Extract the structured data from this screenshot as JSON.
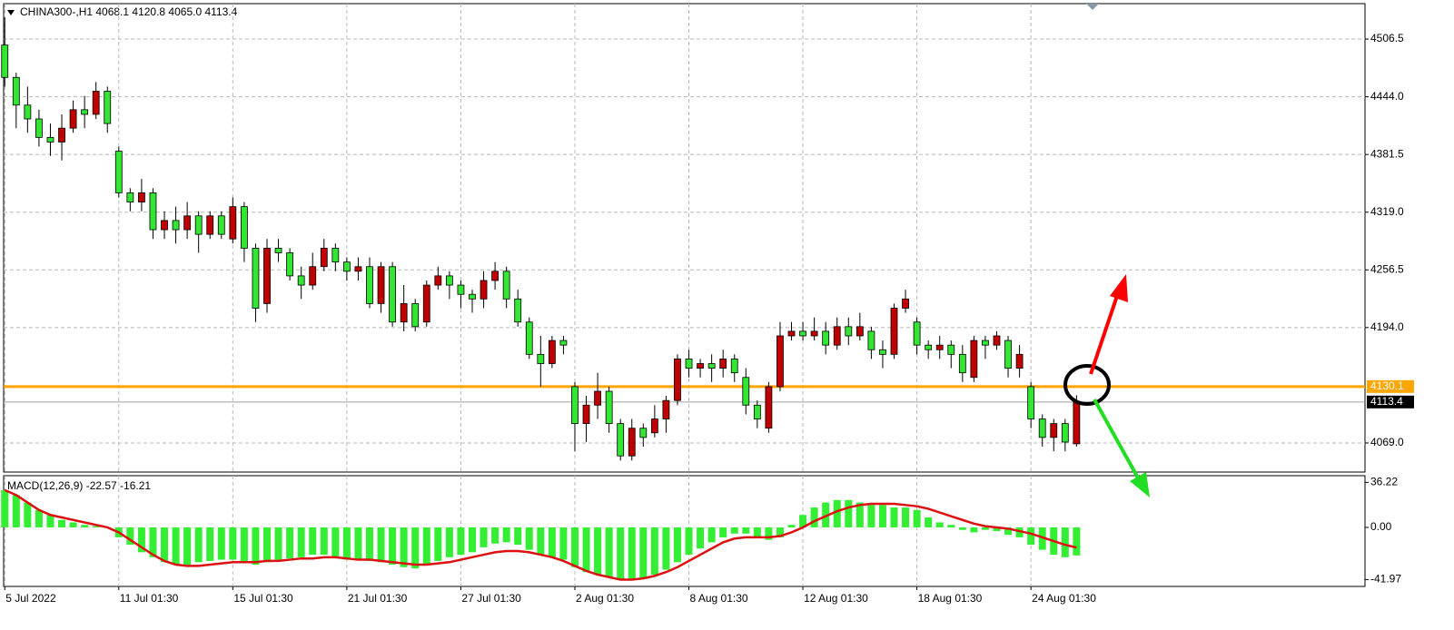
{
  "chart_data": [
    {
      "type": "candlestick",
      "title": "CHINA300-,H1  4068.1 4120.8 4065.0 4113.4",
      "xlim": [
        -0.1,
        119.3
      ],
      "ylim": [
        4037.5,
        4544.9
      ],
      "yticks": [
        4506.5,
        {
          "value": 4444.0,
          "label": "4444.0"
        },
        4381.5,
        {
          "value": 4319.0,
          "label": "4319.0"
        },
        4256.5,
        {
          "value": 4194.0,
          "label": "4194.0"
        },
        {
          "value": 4069.0,
          "label": "4069.0"
        }
      ],
      "grid": true,
      "up_color": "#c00000",
      "down_color": "#33e633",
      "open": [
        4500,
        4465,
        4435,
        4420,
        4400,
        4395,
        4410,
        4430,
        4425,
        4450,
        4385,
        4340,
        4330,
        4340,
        4300,
        4310,
        4300,
        4315,
        4295,
        4315,
        4290,
        4325,
        4280,
        4220,
        4280,
        4275,
        4250,
        4240,
        4260,
        4280,
        4265,
        4255,
        4260,
        4220,
        4260,
        4200,
        4220,
        4200,
        4240,
        4250,
        4240,
        4230,
        4225,
        4245,
        4255,
        4225,
        4200,
        4165,
        4155,
        4180,
        4130,
        4090,
        4110,
        4125,
        4090,
        4055,
        4085,
        4080,
        4095,
        4115,
        4160,
        4150,
        4155,
        4150,
        4160,
        4140,
        4110,
        4085,
        4130,
        4185,
        4190,
        4185,
        4190,
        4175,
        4195,
        4185,
        4190,
        4170,
        4165,
        4215,
        4200,
        4175,
        4170,
        4175,
        4165,
        4140,
        4180,
        4175,
        4180,
        4150,
        4130,
        4095,
        4075,
        4090,
        4068.1
      ],
      "high": [
        4530,
        4470,
        4455,
        4430,
        4415,
        4425,
        4440,
        4445,
        4460,
        4455,
        4390,
        4345,
        4355,
        4345,
        4320,
        4325,
        4330,
        4320,
        4320,
        4320,
        4335,
        4330,
        4285,
        4290,
        4290,
        4280,
        4260,
        4275,
        4290,
        4285,
        4270,
        4270,
        4270,
        4265,
        4265,
        4240,
        4225,
        4245,
        4260,
        4255,
        4245,
        4235,
        4255,
        4265,
        4260,
        4235,
        4205,
        4185,
        4185,
        4185,
        4135,
        4120,
        4145,
        4130,
        4095,
        4095,
        4090,
        4110,
        4120,
        4165,
        4170,
        4160,
        4165,
        4170,
        4165,
        4150,
        4115,
        4135,
        4200,
        4200,
        4200,
        4205,
        4200,
        4205,
        4205,
        4210,
        4195,
        4180,
        4220,
        4235,
        4205,
        4180,
        4185,
        4180,
        4175,
        4185,
        4185,
        4190,
        4185,
        4175,
        4135,
        4100,
        4095,
        4095,
        4120.8
      ],
      "low": [
        4455,
        4410,
        4405,
        4390,
        4380,
        4375,
        4405,
        4410,
        4420,
        4405,
        4335,
        4320,
        4320,
        4290,
        4290,
        4285,
        4290,
        4275,
        4290,
        4290,
        4285,
        4265,
        4200,
        4210,
        4265,
        4245,
        4225,
        4235,
        4255,
        4255,
        4245,
        4245,
        4215,
        4210,
        4195,
        4190,
        4190,
        4195,
        4235,
        4225,
        4215,
        4210,
        4215,
        4235,
        4215,
        4195,
        4160,
        4130,
        4150,
        4165,
        4060,
        4070,
        4095,
        4080,
        4050,
        4050,
        4065,
        4075,
        4080,
        4110,
        4140,
        4140,
        4135,
        4140,
        4135,
        4100,
        4085,
        4080,
        4125,
        4180,
        4180,
        4180,
        4165,
        4170,
        4175,
        4180,
        4160,
        4150,
        4160,
        4210,
        4165,
        4160,
        4160,
        4150,
        4135,
        4135,
        4160,
        4170,
        4140,
        4140,
        4085,
        4065,
        4060,
        4060,
        4065.0
      ],
      "close": [
        4465,
        4435,
        4420,
        4400,
        4395,
        4410,
        4430,
        4425,
        4450,
        4415,
        4340,
        4330,
        4340,
        4300,
        4310,
        4300,
        4315,
        4295,
        4315,
        4295,
        4325,
        4280,
        4215,
        4280,
        4275,
        4250,
        4240,
        4260,
        4280,
        4265,
        4255,
        4260,
        4220,
        4260,
        4200,
        4220,
        4195,
        4240,
        4250,
        4240,
        4230,
        4225,
        4245,
        4255,
        4225,
        4200,
        4165,
        4155,
        4180,
        4175,
        4090,
        4110,
        4125,
        4090,
        4055,
        4085,
        4075,
        4095,
        4115,
        4160,
        4150,
        4155,
        4150,
        4160,
        4145,
        4110,
        4095,
        4130,
        4185,
        4190,
        4185,
        4190,
        4175,
        4195,
        4185,
        4195,
        4170,
        4165,
        4215,
        4225,
        4175,
        4170,
        4175,
        4165,
        4145,
        4180,
        4175,
        4185,
        4150,
        4165,
        4095,
        4075,
        4090,
        4070,
        4113.4
      ],
      "hlines": [
        {
          "value": 4130.1,
          "color": "#ffa500"
        }
      ],
      "last_price": 4113.4
    },
    {
      "type": "macd",
      "title": "MACD(12,26,9) -22.57 -16.21",
      "xlim": [
        -0.1,
        119.3
      ],
      "ylim": [
        -47.5,
        41.6
      ],
      "yticks": [
        36.22,
        {
          "value": 0,
          "label": "0.00"
        },
        -41.97
      ],
      "xticks": [
        {
          "value": 0,
          "label": "5 Jul 2022"
        },
        {
          "value": 10,
          "label": "11 Jul 01:30"
        },
        {
          "value": 20,
          "label": "15 Jul 01:30"
        },
        {
          "value": 30,
          "label": "21 Jul 01:30"
        },
        {
          "value": 40,
          "label": "27 Jul 01:30"
        },
        {
          "value": 50,
          "label": "2 Aug 01:30"
        },
        {
          "value": 60,
          "label": "8 Aug 01:30"
        },
        {
          "value": 70,
          "label": "12 Aug 01:30"
        },
        {
          "value": 80,
          "label": "18 Aug 01:30"
        },
        {
          "value": 90,
          "label": "24 Aug 01:30"
        }
      ],
      "series": [
        {
          "type": "bar",
          "color": "#33ee33",
          "values": [
            30,
            26,
            20,
            14,
            10,
            6,
            4,
            2,
            1,
            0,
            -8,
            -14,
            -20,
            -24,
            -28,
            -30,
            -30,
            -28,
            -27,
            -26,
            -26,
            -28,
            -30,
            -28,
            -26,
            -25,
            -24,
            -22,
            -22,
            -24,
            -26,
            -26,
            -27,
            -28,
            -30,
            -32,
            -33,
            -30,
            -27,
            -24,
            -22,
            -20,
            -16,
            -13,
            -12,
            -14,
            -18,
            -22,
            -24,
            -26,
            -32,
            -36,
            -38,
            -40,
            -42,
            -42,
            -41,
            -38,
            -34,
            -28,
            -22,
            -17,
            -12,
            -8,
            -5,
            -5,
            -8,
            -10,
            -8,
            2,
            10,
            16,
            20,
            22,
            22,
            20,
            18,
            18,
            16,
            16,
            14,
            8,
            4,
            2,
            -2,
            -4,
            -2,
            -3,
            -6,
            -8,
            -14,
            -18,
            -22,
            -24,
            -22.57
          ]
        },
        {
          "type": "line",
          "color": "#dd1111",
          "values": [
            30,
            26,
            20,
            14,
            10,
            8,
            6,
            4,
            2,
            0,
            -4,
            -10,
            -16,
            -22,
            -27,
            -30,
            -31,
            -31,
            -30,
            -29,
            -28,
            -28,
            -28,
            -27,
            -27,
            -26,
            -25,
            -25,
            -24,
            -24,
            -25,
            -26,
            -26,
            -27,
            -28,
            -29,
            -30,
            -30,
            -29,
            -28,
            -26,
            -24,
            -22,
            -20,
            -19,
            -19,
            -20,
            -22,
            -24,
            -27,
            -31,
            -35,
            -38,
            -40,
            -42,
            -42,
            -41,
            -39,
            -36,
            -32,
            -27,
            -22,
            -17,
            -12,
            -9,
            -8,
            -8,
            -8,
            -7,
            -4,
            0,
            5,
            9,
            13,
            16,
            18,
            19,
            19,
            19,
            18,
            17,
            15,
            12,
            9,
            6,
            3,
            1,
            0,
            -1,
            -3,
            -5,
            -8,
            -11,
            -14,
            -16.21
          ]
        }
      ]
    }
  ]
}
